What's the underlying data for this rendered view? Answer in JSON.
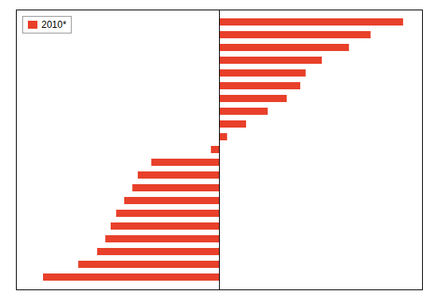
{
  "chart_data": {
    "type": "bar",
    "orientation": "horizontal",
    "categories": [
      null,
      null,
      null,
      null,
      null,
      null,
      null,
      null,
      null,
      null,
      null,
      null,
      null,
      null,
      null,
      null,
      null,
      null,
      null,
      null,
      null
    ],
    "series": [
      {
        "name": "2010*",
        "color": "#e8402a",
        "values": [
          -6.5,
          -5.2,
          -4.5,
          -4.2,
          -4.0,
          -3.8,
          -3.5,
          -3.2,
          -3.0,
          -2.5,
          -0.3,
          0.3,
          1.0,
          1.8,
          2.5,
          3.0,
          3.2,
          3.8,
          4.8,
          5.6,
          6.8
        ]
      }
    ],
    "xlim": [
      -7.5,
      7.5
    ],
    "xticks": [],
    "grid": false,
    "tick_labels": false,
    "legend": "upper left"
  }
}
